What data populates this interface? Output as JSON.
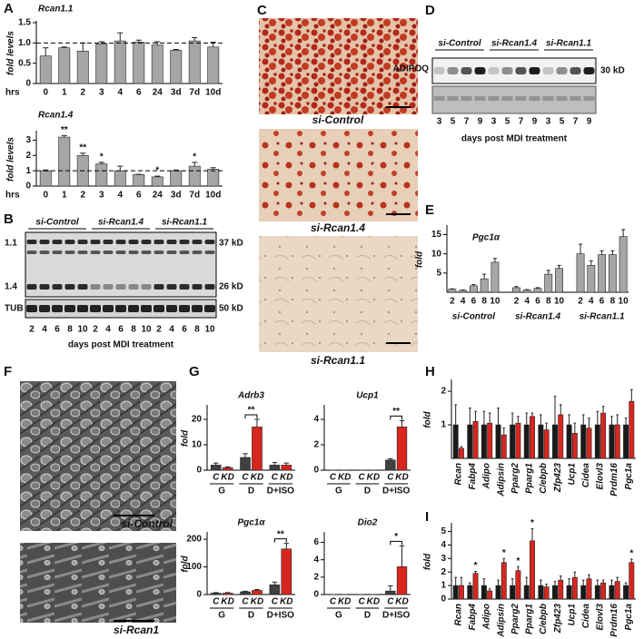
{
  "panel_labels": [
    "A",
    "B",
    "C",
    "D",
    "E",
    "F",
    "G",
    "H",
    "I"
  ],
  "chart_data": [
    {
      "type": "bar",
      "title": "Rcan1.1",
      "ylabel": "fold levels",
      "xlabel": "hrs",
      "categories": [
        "0",
        "1",
        "2",
        "3",
        "4",
        "6",
        "24",
        "3d",
        "7d",
        "10d"
      ],
      "values": [
        0.68,
        0.88,
        0.8,
        0.98,
        1.05,
        1.02,
        0.95,
        0.82,
        1.05,
        0.9
      ],
      "errors": [
        0.2,
        0.02,
        0.2,
        0.05,
        0.2,
        0.05,
        0.08,
        0.02,
        0.08,
        0.12
      ],
      "color": "#a6a6a6",
      "ylim": [
        0,
        1.5
      ],
      "yticks": [
        0,
        0.5,
        {
          "value": 1,
          "label": "1.0"
        },
        1.5
      ],
      "reference_line": 1
    },
    {
      "type": "bar",
      "title": "Rcan1.4",
      "ylabel": "fold levels",
      "xlabel": "hrs",
      "categories": [
        "0",
        "1",
        "2",
        "3",
        "4",
        "6",
        "24",
        "3d",
        "7d",
        "10d"
      ],
      "values": [
        1.0,
        3.2,
        2.0,
        1.45,
        1.0,
        0.75,
        0.6,
        1.0,
        1.3,
        1.1
      ],
      "errors": [
        0.05,
        0.1,
        0.15,
        0.1,
        0.3,
        0.02,
        0.05,
        0.05,
        0.25,
        0.1
      ],
      "annotations": [
        null,
        "**",
        "**",
        "*",
        null,
        null,
        "*",
        null,
        "*",
        null
      ],
      "color": "#a6a6a6",
      "ylim": [
        0,
        3.5
      ],
      "yticks": [
        0,
        1,
        2,
        3
      ],
      "reference_line": 1
    },
    {
      "type": "bar",
      "title": "Pgc1α",
      "ylabel": "fold",
      "groups": [
        {
          "name": "si-Control",
          "categories": [
            "2",
            "4",
            "6",
            "8",
            "10"
          ],
          "values": [
            0.8,
            0.5,
            1.7,
            3.5,
            7.8
          ],
          "errors": [
            0.1,
            0.1,
            0.3,
            1.2,
            1.0
          ]
        },
        {
          "name": "si-Rcan1.4",
          "categories": [
            "2",
            "4",
            "6",
            "8",
            "10"
          ],
          "values": [
            1.2,
            0.6,
            1.0,
            4.7,
            6.2
          ],
          "errors": [
            0.3,
            0.1,
            0.2,
            1.0,
            0.8
          ]
        },
        {
          "name": "si-Rcan1.1",
          "categories": [
            "2",
            "4",
            "6",
            "8",
            "10"
          ],
          "values": [
            10,
            7,
            9.8,
            9.8,
            14.5
          ],
          "errors": [
            2.5,
            1.2,
            1.0,
            1.0,
            1.8
          ]
        }
      ],
      "color": "#a6a6a6",
      "ylim": [
        0,
        17
      ],
      "yticks": [
        5,
        10,
        15
      ]
    },
    {
      "type": "bar",
      "title": "Adrb3",
      "ylabel": "fold",
      "categories": [
        "G",
        "D",
        "D+ISO"
      ],
      "series": [
        {
          "name": "C",
          "color": "#404040",
          "values": [
            2,
            5,
            2
          ],
          "errors": [
            0.8,
            1.5,
            1
          ]
        },
        {
          "name": "KD",
          "color": "#d7261e",
          "values": [
            1,
            17,
            2
          ],
          "errors": [
            0.3,
            3,
            0.8
          ]
        }
      ],
      "annotations": [
        null,
        "**",
        null
      ],
      "ylim": [
        0,
        25
      ],
      "yticks": [
        0,
        10,
        20
      ]
    },
    {
      "type": "bar",
      "title": "Ucp1",
      "categories": [
        "G",
        "D",
        "D+ISO"
      ],
      "series": [
        {
          "name": "C",
          "color": "#404040",
          "values": [
            0,
            0,
            0.8
          ],
          "errors": [
            0,
            0,
            0.1
          ]
        },
        {
          "name": "KD",
          "color": "#d7261e",
          "values": [
            0,
            0,
            3.4
          ],
          "errors": [
            0,
            0,
            0.5
          ]
        }
      ],
      "annotations": [
        null,
        null,
        "**"
      ],
      "ylim": [
        0,
        5
      ],
      "yticks": [
        0,
        2,
        4
      ]
    },
    {
      "type": "bar",
      "title": "Pgc1α",
      "ylabel": "fold",
      "categories": [
        "G",
        "D",
        "D+ISO"
      ],
      "series": [
        {
          "name": "C",
          "color": "#404040",
          "values": [
            5,
            10,
            35
          ],
          "errors": [
            2,
            2,
            10
          ]
        },
        {
          "name": "KD",
          "color": "#d7261e",
          "values": [
            5,
            15,
            165
          ],
          "errors": [
            2,
            3,
            20
          ]
        }
      ],
      "annotations": [
        null,
        null,
        "**"
      ],
      "ylim": [
        0,
        220
      ],
      "yticks": [
        0,
        100,
        200
      ]
    },
    {
      "type": "bar",
      "title": "Dio2",
      "categories": [
        "G",
        "D",
        "D+ISO"
      ],
      "series": [
        {
          "name": "C",
          "color": "#404040",
          "values": [
            0,
            0,
            0.4
          ],
          "errors": [
            0,
            0,
            0.6
          ]
        },
        {
          "name": "KD",
          "color": "#d7261e",
          "values": [
            0,
            0,
            3.2
          ],
          "errors": [
            0,
            0,
            2.4
          ]
        }
      ],
      "annotations": [
        null,
        null,
        "*"
      ],
      "ylim": [
        0,
        7
      ],
      "yticks": [
        0,
        2,
        4,
        6
      ]
    },
    {
      "type": "bar",
      "ylabel": "fold",
      "categories": [
        "Rcan",
        "Fabp4",
        "Adipo",
        "Adipsin",
        "Pparg2",
        "Pparg1",
        "C/ebpb",
        "Zfp423",
        "Ucp1",
        "Cidea",
        "Elovl3",
        "Prdm16",
        "Pgc1a"
      ],
      "series": [
        {
          "color": "#1a1a1a",
          "values": [
            1,
            1,
            1,
            1,
            1,
            1,
            1,
            1,
            1,
            1,
            1,
            1,
            1
          ],
          "errors": [
            0.6,
            0.5,
            0.4,
            0.5,
            0.35,
            0.35,
            0.3,
            0.85,
            0.3,
            0.3,
            0.4,
            0.25,
            0.2
          ]
        },
        {
          "color": "#d7261e",
          "values": [
            0.3,
            1.1,
            1.05,
            0.7,
            1.05,
            1.25,
            0.85,
            1.3,
            0.75,
            0.9,
            1.35,
            1.0,
            1.7
          ],
          "errors": [
            0.05,
            0.3,
            0.3,
            0.2,
            0.2,
            0.1,
            0.2,
            0.3,
            0.3,
            0.3,
            0.2,
            0.3,
            0.35
          ]
        }
      ],
      "ylim": [
        0,
        2.3
      ],
      "yticks": [
        1,
        2
      ]
    },
    {
      "type": "bar",
      "ylabel": "fold",
      "categories": [
        "Rcan",
        "Fabp4",
        "Adipo",
        "Adipsin",
        "Pparg2",
        "Pparg1",
        "C/ebpb",
        "Zfp423",
        "Ucp1",
        "Cidea",
        "Elovl3",
        "Prdm16",
        "Pgc1a"
      ],
      "series": [
        {
          "color": "#1a1a1a",
          "values": [
            1,
            1,
            1,
            1,
            1,
            1,
            1,
            1,
            1,
            1,
            1,
            1,
            1
          ],
          "errors": [
            0.6,
            0.2,
            0.5,
            0.4,
            0.5,
            0.6,
            0.4,
            0.3,
            0.5,
            0.4,
            0.4,
            0.4,
            0.2
          ]
        },
        {
          "color": "#d7261e",
          "values": [
            1.0,
            1.9,
            0.6,
            2.7,
            2.1,
            4.3,
            0.9,
            1.4,
            1.6,
            1.5,
            1.2,
            1.3,
            2.7
          ],
          "errors": [
            0.6,
            0.15,
            0.15,
            0.3,
            0.3,
            0.9,
            0.2,
            0.3,
            0.4,
            0.3,
            0.2,
            0.3,
            0.25
          ]
        }
      ],
      "annotations": [
        null,
        "*",
        null,
        "*",
        "*",
        "*",
        null,
        null,
        null,
        null,
        null,
        null,
        "*"
      ],
      "ylim": [
        0,
        5.5
      ],
      "yticks": [
        0,
        1,
        2,
        3,
        4,
        5
      ]
    }
  ],
  "blot_B": {
    "groups": [
      "si-Control",
      "si-Rcan1.4",
      "si-Rcan1.1"
    ],
    "row_labels": [
      "1.1",
      "1.4",
      "TUB"
    ],
    "sizes": [
      "37 kD",
      "26 kD",
      "50 kD"
    ],
    "lanes": [
      2,
      4,
      6,
      8,
      10,
      2,
      4,
      6,
      8,
      10,
      2,
      4,
      6,
      8,
      10
    ],
    "xlabel": "days post MDI treatment"
  },
  "blot_D": {
    "groups": [
      "si-Control",
      "si-Rcan1.4",
      "si-Rcan1.1"
    ],
    "row_label": "ADIPOQ",
    "size": "30 kD",
    "lanes": [
      3,
      5,
      7,
      9,
      3,
      5,
      7,
      9,
      3,
      5,
      7,
      9
    ],
    "xlabel": "days post MDI treatment"
  },
  "images_C": [
    "si-Control",
    "si-Rcan1.4",
    "si-Rcan1.1"
  ],
  "images_F": [
    "si-Control",
    "si-Rcan1"
  ]
}
